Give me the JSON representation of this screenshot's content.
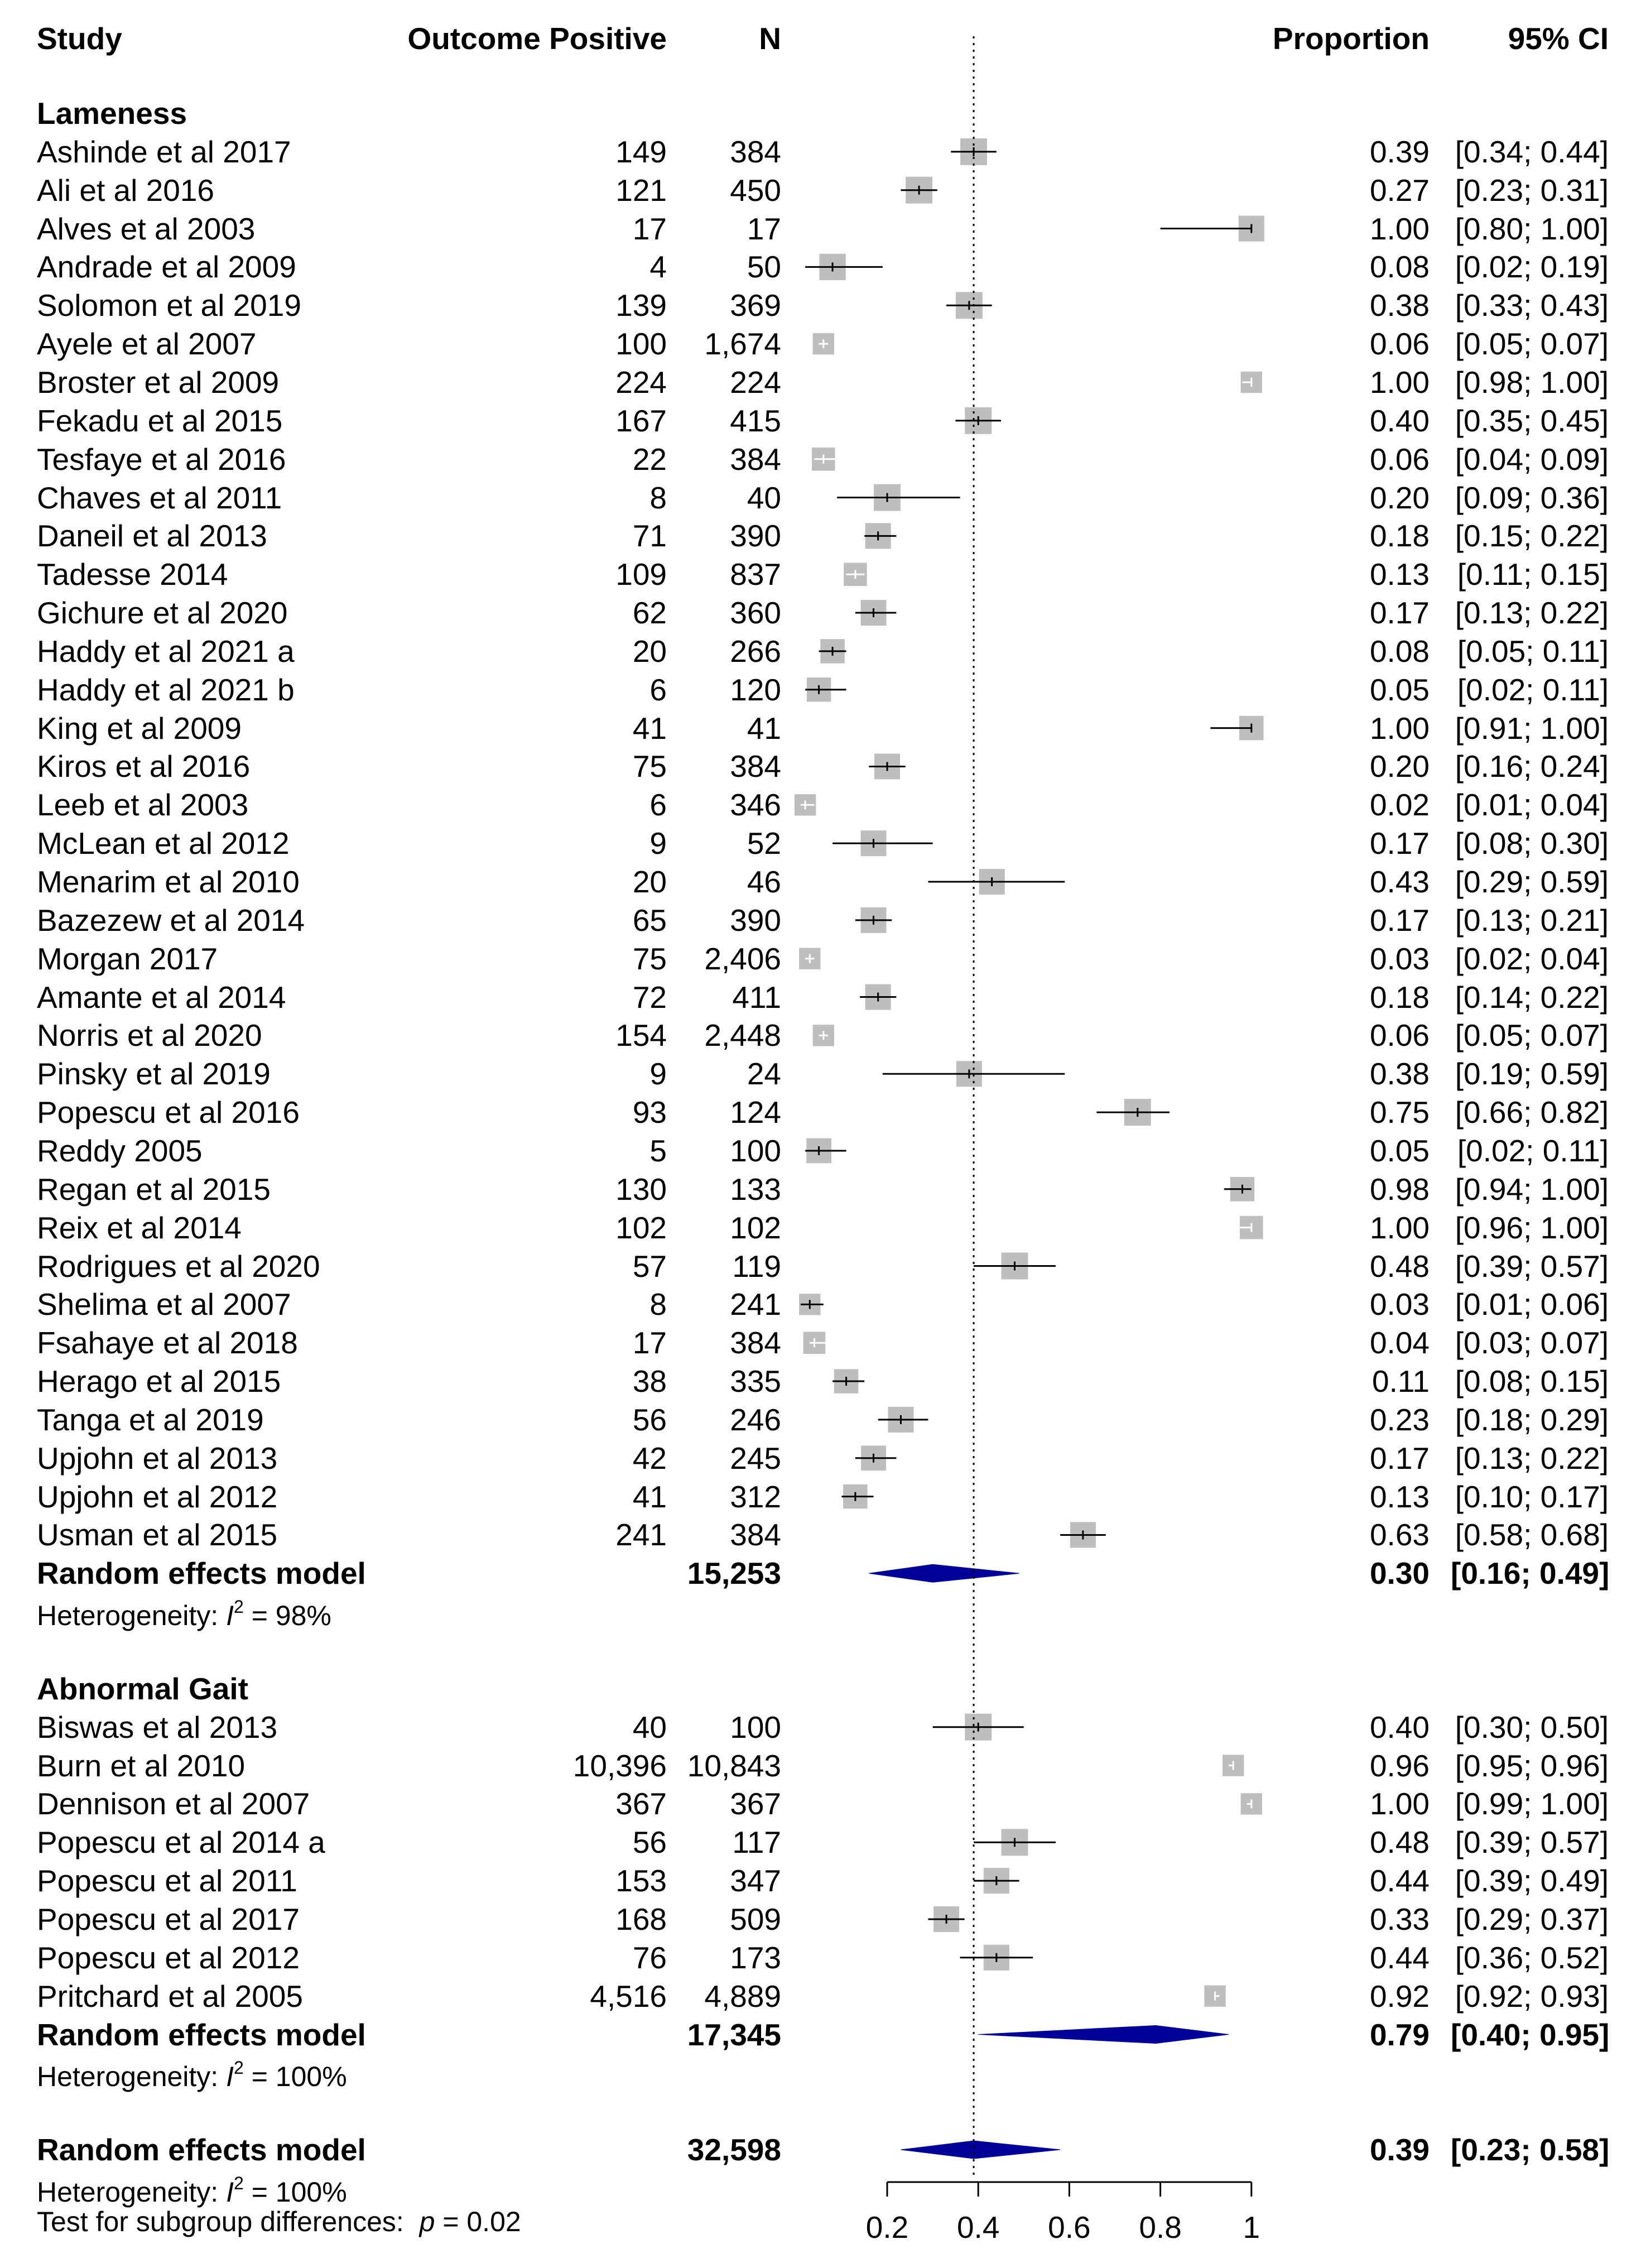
{
  "headers": {
    "study": "Study",
    "outcome_positive": "Outcome Positive",
    "n": "N",
    "proportion": "Proportion",
    "ci": "95% CI"
  },
  "colors": {
    "box": "#bebebe",
    "diamond": "#000099",
    "line": "#000000"
  },
  "chart_data": {
    "type": "forest",
    "xaxis": {
      "ticks": [
        0.2,
        0.4,
        0.6,
        0.8,
        1
      ],
      "tick_labels": [
        "0.2",
        "0.4",
        "0.6",
        "0.8",
        "1"
      ],
      "range": [
        0.2,
        1.0
      ]
    },
    "reference_line": 0.39,
    "groups": [
      {
        "name": "Lameness",
        "studies": [
          {
            "study": "Ashinde et al 2017",
            "pos": "149",
            "n": "384",
            "prop": 0.39,
            "lo": 0.34,
            "hi": 0.44,
            "prop_text": "0.39",
            "ci_text": "[0.34; 0.44]",
            "w": 0.75
          },
          {
            "study": "Ali et al 2016",
            "pos": "121",
            "n": "450",
            "prop": 0.27,
            "lo": 0.23,
            "hi": 0.31,
            "prop_text": "0.27",
            "ci_text": "[0.23; 0.31]",
            "w": 0.75
          },
          {
            "study": "Alves et al 2003",
            "pos": "17",
            "n": "17",
            "prop": 1.0,
            "lo": 0.8,
            "hi": 1.0,
            "prop_text": "1.00",
            "ci_text": "[0.80; 1.00]",
            "w": 0.72
          },
          {
            "study": "Andrade et al 2009",
            "pos": "4",
            "n": "50",
            "prop": 0.08,
            "lo": 0.02,
            "hi": 0.19,
            "prop_text": "0.08",
            "ci_text": "[0.02; 0.19]",
            "w": 0.74
          },
          {
            "study": "Solomon et al 2019",
            "pos": "139",
            "n": "369",
            "prop": 0.38,
            "lo": 0.33,
            "hi": 0.43,
            "prop_text": "0.38",
            "ci_text": "[0.33; 0.43]",
            "w": 0.75
          },
          {
            "study": "Ayele et al 2007",
            "pos": "100",
            "n": "1,674",
            "prop": 0.06,
            "lo": 0.05,
            "hi": 0.07,
            "prop_text": "0.06",
            "ci_text": "[0.05; 0.07]",
            "w": 0.6
          },
          {
            "study": "Broster et al 2009",
            "pos": "224",
            "n": "224",
            "prop": 1.0,
            "lo": 0.98,
            "hi": 1.0,
            "prop_text": "1.00",
            "ci_text": "[0.98; 1.00]",
            "w": 0.6
          },
          {
            "study": "Fekadu et al 2015",
            "pos": "167",
            "n": "415",
            "prop": 0.4,
            "lo": 0.35,
            "hi": 0.45,
            "prop_text": "0.40",
            "ci_text": "[0.35; 0.45]",
            "w": 0.75
          },
          {
            "study": "Tesfaye et al 2016",
            "pos": "22",
            "n": "384",
            "prop": 0.06,
            "lo": 0.04,
            "hi": 0.09,
            "prop_text": "0.06",
            "ci_text": "[0.04; 0.09]",
            "w": 0.65
          },
          {
            "study": "Chaves et al 2011",
            "pos": "8",
            "n": "40",
            "prop": 0.2,
            "lo": 0.09,
            "hi": 0.36,
            "prop_text": "0.20",
            "ci_text": "[0.09; 0.36]",
            "w": 0.75
          },
          {
            "study": "Daneil et al 2013",
            "pos": "71",
            "n": "390",
            "prop": 0.18,
            "lo": 0.15,
            "hi": 0.22,
            "prop_text": "0.18",
            "ci_text": "[0.15; 0.22]",
            "w": 0.72
          },
          {
            "study": "Tadesse 2014",
            "pos": "109",
            "n": "837",
            "prop": 0.13,
            "lo": 0.11,
            "hi": 0.15,
            "prop_text": "0.13",
            "ci_text": "[0.11; 0.15]",
            "w": 0.65
          },
          {
            "study": "Gichure et al 2020",
            "pos": "62",
            "n": "360",
            "prop": 0.17,
            "lo": 0.13,
            "hi": 0.22,
            "prop_text": "0.17",
            "ci_text": "[0.13; 0.22]",
            "w": 0.72
          },
          {
            "study": "Haddy et al 2021 a",
            "pos": "20",
            "n": "266",
            "prop": 0.08,
            "lo": 0.05,
            "hi": 0.11,
            "prop_text": "0.08",
            "ci_text": "[0.05; 0.11]",
            "w": 0.68
          },
          {
            "study": "Haddy et al 2021 b",
            "pos": "6",
            "n": "120",
            "prop": 0.05,
            "lo": 0.02,
            "hi": 0.11,
            "prop_text": "0.05",
            "ci_text": "[0.02; 0.11]",
            "w": 0.68
          },
          {
            "study": "King et al 2009",
            "pos": "41",
            "n": "41",
            "prop": 1.0,
            "lo": 0.91,
            "hi": 1.0,
            "prop_text": "1.00",
            "ci_text": "[0.91; 1.00]",
            "w": 0.68
          },
          {
            "study": "Kiros et al 2016",
            "pos": "75",
            "n": "384",
            "prop": 0.2,
            "lo": 0.16,
            "hi": 0.24,
            "prop_text": "0.20",
            "ci_text": "[0.16; 0.24]",
            "w": 0.72
          },
          {
            "study": "Leeb et al 2003",
            "pos": "6",
            "n": "346",
            "prop": 0.02,
            "lo": 0.01,
            "hi": 0.04,
            "prop_text": "0.02",
            "ci_text": "[0.01; 0.04]",
            "w": 0.6
          },
          {
            "study": "McLean et al 2012",
            "pos": "9",
            "n": "52",
            "prop": 0.17,
            "lo": 0.08,
            "hi": 0.3,
            "prop_text": "0.17",
            "ci_text": "[0.08; 0.30]",
            "w": 0.72
          },
          {
            "study": "Menarim et al 2010",
            "pos": "20",
            "n": "46",
            "prop": 0.43,
            "lo": 0.29,
            "hi": 0.59,
            "prop_text": "0.43",
            "ci_text": "[0.29; 0.59]",
            "w": 0.72
          },
          {
            "study": "Bazezew et al 2014",
            "pos": "65",
            "n": "390",
            "prop": 0.17,
            "lo": 0.13,
            "hi": 0.21,
            "prop_text": "0.17",
            "ci_text": "[0.13; 0.21]",
            "w": 0.72
          },
          {
            "study": "Morgan 2017",
            "pos": "75",
            "n": "2,406",
            "prop": 0.03,
            "lo": 0.02,
            "hi": 0.04,
            "prop_text": "0.03",
            "ci_text": "[0.02; 0.04]",
            "w": 0.6
          },
          {
            "study": "Amante et al 2014",
            "pos": "72",
            "n": "411",
            "prop": 0.18,
            "lo": 0.14,
            "hi": 0.22,
            "prop_text": "0.18",
            "ci_text": "[0.14; 0.22]",
            "w": 0.72
          },
          {
            "study": "Norris et al 2020",
            "pos": "154",
            "n": "2,448",
            "prop": 0.06,
            "lo": 0.05,
            "hi": 0.07,
            "prop_text": "0.06",
            "ci_text": "[0.05; 0.07]",
            "w": 0.6
          },
          {
            "study": "Pinsky et al 2019",
            "pos": "9",
            "n": "24",
            "prop": 0.38,
            "lo": 0.19,
            "hi": 0.59,
            "prop_text": "0.38",
            "ci_text": "[0.19; 0.59]",
            "w": 0.72
          },
          {
            "study": "Popescu et al 2016",
            "pos": "93",
            "n": "124",
            "prop": 0.75,
            "lo": 0.66,
            "hi": 0.82,
            "prop_text": "0.75",
            "ci_text": "[0.66; 0.82]",
            "w": 0.75
          },
          {
            "study": "Reddy 2005",
            "pos": "5",
            "n": "100",
            "prop": 0.05,
            "lo": 0.02,
            "hi": 0.11,
            "prop_text": "0.05",
            "ci_text": "[0.02; 0.11]",
            "w": 0.7
          },
          {
            "study": "Regan et al 2015",
            "pos": "130",
            "n": "133",
            "prop": 0.98,
            "lo": 0.94,
            "hi": 1.0,
            "prop_text": "0.98",
            "ci_text": "[0.94; 1.00]",
            "w": 0.68
          },
          {
            "study": "Reix et al 2014",
            "pos": "102",
            "n": "102",
            "prop": 1.0,
            "lo": 0.96,
            "hi": 1.0,
            "prop_text": "1.00",
            "ci_text": "[0.96; 1.00]",
            "w": 0.65
          },
          {
            "study": "Rodrigues et al 2020",
            "pos": "57",
            "n": "119",
            "prop": 0.48,
            "lo": 0.39,
            "hi": 0.57,
            "prop_text": "0.48",
            "ci_text": "[0.39; 0.57]",
            "w": 0.75
          },
          {
            "study": "Shelima et al 2007",
            "pos": "8",
            "n": "241",
            "prop": 0.03,
            "lo": 0.01,
            "hi": 0.06,
            "prop_text": "0.03",
            "ci_text": "[0.01; 0.06]",
            "w": 0.6
          },
          {
            "study": "Fsahaye et al 2018",
            "pos": "17",
            "n": "384",
            "prop": 0.04,
            "lo": 0.03,
            "hi": 0.07,
            "prop_text": "0.04",
            "ci_text": "[0.03; 0.07]",
            "w": 0.62
          },
          {
            "study": "Herago et al 2015",
            "pos": "38",
            "n": "335",
            "prop": 0.11,
            "lo": 0.08,
            "hi": 0.15,
            "prop_text": "0.11",
            "ci_text": "[0.08; 0.15]",
            "w": 0.68
          },
          {
            "study": "Tanga et al 2019",
            "pos": "56",
            "n": "246",
            "prop": 0.23,
            "lo": 0.18,
            "hi": 0.29,
            "prop_text": "0.23",
            "ci_text": "[0.18; 0.29]",
            "w": 0.72
          },
          {
            "study": "Upjohn et al 2013",
            "pos": "42",
            "n": "245",
            "prop": 0.17,
            "lo": 0.13,
            "hi": 0.22,
            "prop_text": "0.17",
            "ci_text": "[0.13; 0.22]",
            "w": 0.7
          },
          {
            "study": "Upjohn et al 2012",
            "pos": "41",
            "n": "312",
            "prop": 0.13,
            "lo": 0.1,
            "hi": 0.17,
            "prop_text": "0.13",
            "ci_text": "[0.10; 0.17]",
            "w": 0.68
          },
          {
            "study": "Usman et al 2015",
            "pos": "241",
            "n": "384",
            "prop": 0.63,
            "lo": 0.58,
            "hi": 0.68,
            "prop_text": "0.63",
            "ci_text": "[0.58; 0.68]",
            "w": 0.72
          }
        ],
        "summary": {
          "label": "Random effects model",
          "n": "15,253",
          "prop": 0.3,
          "lo": 0.16,
          "hi": 0.49,
          "prop_text": "0.30",
          "ci_text": "[0.16; 0.49]"
        },
        "heterogeneity": {
          "prefix": "Heterogeneity: ",
          "italic": "I",
          "sup": "2",
          "suffix": " = 98%"
        }
      },
      {
        "name": "Abnormal Gait",
        "studies": [
          {
            "study": "Biswas et al 2013",
            "pos": "40",
            "n": "100",
            "prop": 0.4,
            "lo": 0.3,
            "hi": 0.5,
            "prop_text": "0.40",
            "ci_text": "[0.30; 0.50]",
            "w": 0.75
          },
          {
            "study": "Burn et al 2010",
            "pos": "10,396",
            "n": "10,843",
            "prop": 0.96,
            "lo": 0.95,
            "hi": 0.96,
            "prop_text": "0.96",
            "ci_text": "[0.95; 0.96]",
            "w": 0.6
          },
          {
            "study": "Dennison et al 2007",
            "pos": "367",
            "n": "367",
            "prop": 1.0,
            "lo": 0.99,
            "hi": 1.0,
            "prop_text": "1.00",
            "ci_text": "[0.99; 1.00]",
            "w": 0.6
          },
          {
            "study": "Popescu et al 2014 a",
            "pos": "56",
            "n": "117",
            "prop": 0.48,
            "lo": 0.39,
            "hi": 0.57,
            "prop_text": "0.48",
            "ci_text": "[0.39; 0.57]",
            "w": 0.75
          },
          {
            "study": "Popescu et al 2011",
            "pos": "153",
            "n": "347",
            "prop": 0.44,
            "lo": 0.39,
            "hi": 0.49,
            "prop_text": "0.44",
            "ci_text": "[0.39; 0.49]",
            "w": 0.72
          },
          {
            "study": "Popescu et al 2017",
            "pos": "168",
            "n": "509",
            "prop": 0.33,
            "lo": 0.29,
            "hi": 0.37,
            "prop_text": "0.33",
            "ci_text": "[0.29; 0.37]",
            "w": 0.72
          },
          {
            "study": "Popescu et al 2012",
            "pos": "76",
            "n": "173",
            "prop": 0.44,
            "lo": 0.36,
            "hi": 0.52,
            "prop_text": "0.44",
            "ci_text": "[0.36; 0.52]",
            "w": 0.72
          },
          {
            "study": "Pritchard et al 2005",
            "pos": "4,516",
            "n": "4,889",
            "prop": 0.92,
            "lo": 0.92,
            "hi": 0.93,
            "prop_text": "0.92",
            "ci_text": "[0.92; 0.93]",
            "w": 0.6
          }
        ],
        "summary": {
          "label": "Random effects model",
          "n": "17,345",
          "prop": 0.79,
          "lo": 0.4,
          "hi": 0.95,
          "prop_text": "0.79",
          "ci_text": "[0.40; 0.95]"
        },
        "heterogeneity": {
          "prefix": "Heterogeneity: ",
          "italic": "I",
          "sup": "2",
          "suffix": " = 100%"
        }
      }
    ],
    "overall": {
      "label": "Random effects model",
      "n": "32,598",
      "prop": 0.39,
      "lo": 0.23,
      "hi": 0.58,
      "prop_text": "0.39",
      "ci_text": "[0.23; 0.58]",
      "heterogeneity": {
        "prefix": "Heterogeneity: ",
        "italic": "I",
        "sup": "2",
        "suffix": " = 100%"
      },
      "subgroup_test": {
        "prefix": "Test for subgroup differences:  ",
        "italic": "p",
        "suffix": " = 0.02"
      }
    }
  }
}
